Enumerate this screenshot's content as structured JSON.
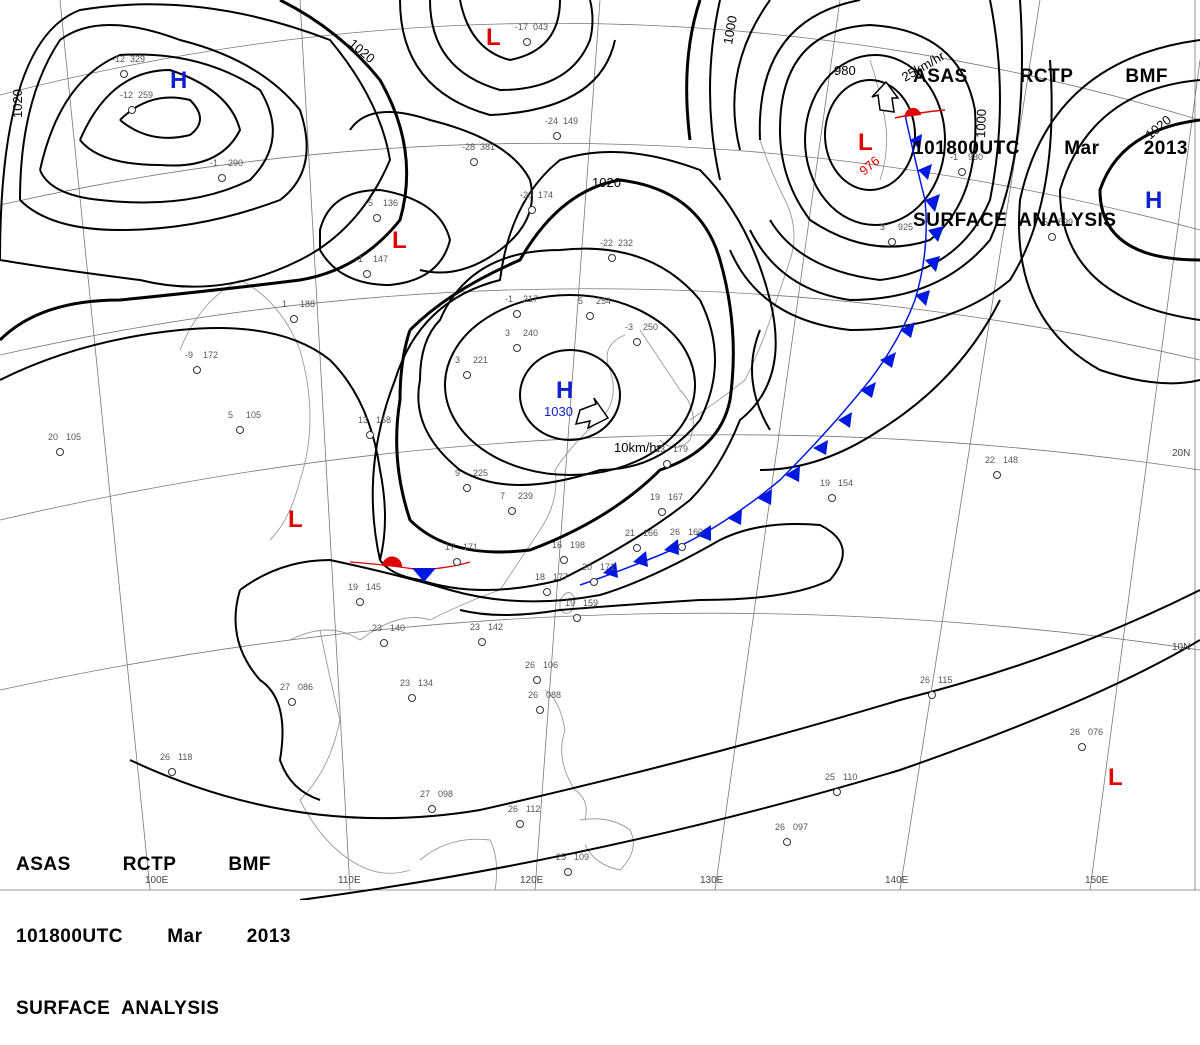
{
  "header_top": {
    "line1": [
      "ASAS",
      "RCTP",
      "BMF"
    ],
    "line2": [
      "101800UTC",
      "Mar",
      "2013"
    ],
    "line3": "SURFACE  ANALYSIS"
  },
  "header_bottom": {
    "line1": [
      "ASAS",
      "RCTP",
      "BMF"
    ],
    "line2": [
      "101800UTC",
      "Mar",
      "2013"
    ],
    "line3": "SURFACE  ANALYSIS"
  },
  "colors": {
    "high": "#1020d0",
    "low": "#e00000",
    "front": "#0018e0",
    "warm": "#e00000"
  },
  "pressure_centers": [
    {
      "type": "H",
      "label": "H",
      "value": "1030",
      "speed": "10km/hr"
    },
    {
      "type": "L",
      "label": "L",
      "value": "976",
      "speed": "25km/hr"
    },
    {
      "type": "H",
      "label": "H"
    },
    {
      "type": "H",
      "label": "H"
    },
    {
      "type": "L",
      "label": "L"
    },
    {
      "type": "L",
      "label": "L"
    },
    {
      "type": "L",
      "label": "L"
    },
    {
      "type": "L",
      "label": "L"
    }
  ],
  "isobar_labels": [
    "1020",
    "1020",
    "1020",
    "1020",
    "1000",
    "1000",
    "980"
  ],
  "longitude_labels": [
    "100E",
    "110E",
    "120E",
    "130E",
    "140E",
    "150E"
  ],
  "latitude_labels": [
    "20N",
    "10N"
  ],
  "observations": [
    {
      "t": "-12",
      "p": "329"
    },
    {
      "t": "-12",
      "p": "259"
    },
    {
      "t": "-1",
      "p": "290"
    },
    {
      "t": "-5",
      "p": "136"
    },
    {
      "t": "-1",
      "p": "147"
    },
    {
      "t": "-28",
      "p": "381"
    },
    {
      "t": "-24",
      "p": "149"
    },
    {
      "t": "-20",
      "p": "174"
    },
    {
      "t": "-22",
      "p": "232"
    },
    {
      "t": "-1",
      "p": "217"
    },
    {
      "t": "5",
      "p": "254"
    },
    {
      "t": "-3",
      "p": "250"
    },
    {
      "t": "3",
      "p": "221"
    },
    {
      "t": "3",
      "p": "240"
    },
    {
      "t": "9",
      "p": "225"
    },
    {
      "t": "7",
      "p": "239"
    },
    {
      "t": "13",
      "p": "158"
    },
    {
      "t": "1",
      "p": "188"
    },
    {
      "t": "-9",
      "p": "172"
    },
    {
      "t": "5",
      "p": "105"
    },
    {
      "t": "20",
      "p": "105"
    },
    {
      "t": "17",
      "p": "171"
    },
    {
      "t": "16",
      "p": "198"
    },
    {
      "t": "20",
      "p": "171"
    },
    {
      "t": "21",
      "p": "166"
    },
    {
      "t": "19",
      "p": "167"
    },
    {
      "t": "19",
      "p": "154"
    },
    {
      "t": "22",
      "p": "148"
    },
    {
      "t": "19",
      "p": "145"
    },
    {
      "t": "23",
      "p": "140"
    },
    {
      "t": "23",
      "p": "142"
    },
    {
      "t": "23",
      "p": "134"
    },
    {
      "t": "27",
      "p": "086"
    },
    {
      "t": "26",
      "p": "106"
    },
    {
      "t": "26",
      "p": "088"
    },
    {
      "t": "26",
      "p": "118"
    },
    {
      "t": "27",
      "p": "098"
    },
    {
      "t": "26",
      "p": "112"
    },
    {
      "t": "25",
      "p": "109"
    },
    {
      "t": "25",
      "p": "110"
    },
    {
      "t": "26",
      "p": "097"
    },
    {
      "t": "26",
      "p": "115"
    },
    {
      "t": "26",
      "p": "076"
    },
    {
      "t": "26",
      "p": "160"
    },
    {
      "t": "18",
      "p": "177"
    },
    {
      "t": "19",
      "p": "159"
    },
    {
      "t": "13",
      "p": "179"
    },
    {
      "t": "3",
      "p": "925"
    },
    {
      "t": "-17",
      "p": "043"
    },
    {
      "t": "-1",
      "p": "930"
    },
    {
      "t": "-5",
      "p": "899"
    }
  ]
}
